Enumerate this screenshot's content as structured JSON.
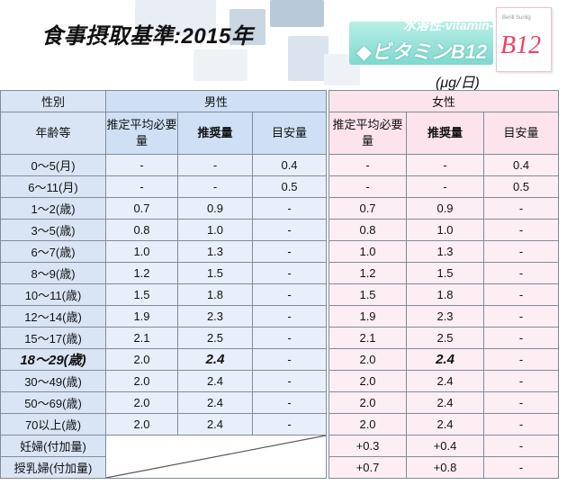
{
  "title": "食事摂取基準:2015年",
  "vitamin": {
    "small_label": "水溶性-vitamin-",
    "main_label": "◆ビタミンB12",
    "card_small": "Berill Sunlig",
    "card_big": "B12",
    "unit": "(μg/日)"
  },
  "table": {
    "header": {
      "sex_label": "性別",
      "male": "男性",
      "female": "女性",
      "age_label": "年齢等",
      "col_ear": "推定平均必要量",
      "col_rda": "推奨量",
      "col_ai": "目安量"
    },
    "rows": [
      {
        "age": "0～5(月)",
        "m_ear": "-",
        "m_rda": "-",
        "m_ai": "0.4",
        "f_ear": "-",
        "f_rda": "-",
        "f_ai": "0.4"
      },
      {
        "age": "6～11(月)",
        "m_ear": "-",
        "m_rda": "-",
        "m_ai": "0.5",
        "f_ear": "-",
        "f_rda": "-",
        "f_ai": "0.5"
      },
      {
        "age": "1～2(歳)",
        "m_ear": "0.7",
        "m_rda": "0.9",
        "m_ai": "-",
        "f_ear": "0.7",
        "f_rda": "0.9",
        "f_ai": "-"
      },
      {
        "age": "3～5(歳)",
        "m_ear": "0.8",
        "m_rda": "1.0",
        "m_ai": "-",
        "f_ear": "0.8",
        "f_rda": "1.0",
        "f_ai": "-"
      },
      {
        "age": "6～7(歳)",
        "m_ear": "1.0",
        "m_rda": "1.3",
        "m_ai": "-",
        "f_ear": "1.0",
        "f_rda": "1.3",
        "f_ai": "-"
      },
      {
        "age": "8～9(歳)",
        "m_ear": "1.2",
        "m_rda": "1.5",
        "m_ai": "-",
        "f_ear": "1.2",
        "f_rda": "1.5",
        "f_ai": "-"
      },
      {
        "age": "10～11(歳)",
        "m_ear": "1.5",
        "m_rda": "1.8",
        "m_ai": "-",
        "f_ear": "1.5",
        "f_rda": "1.8",
        "f_ai": "-"
      },
      {
        "age": "12～14(歳)",
        "m_ear": "1.9",
        "m_rda": "2.3",
        "m_ai": "-",
        "f_ear": "1.9",
        "f_rda": "2.3",
        "f_ai": "-"
      },
      {
        "age": "15～17(歳)",
        "m_ear": "2.1",
        "m_rda": "2.5",
        "m_ai": "-",
        "f_ear": "2.1",
        "f_rda": "2.5",
        "f_ai": "-"
      },
      {
        "age": "18～29(歳)",
        "m_ear": "2.0",
        "m_rda": "2.4",
        "m_ai": "-",
        "f_ear": "2.0",
        "f_rda": "2.4",
        "f_ai": "-",
        "highlight": true
      },
      {
        "age": "30～49(歳)",
        "m_ear": "2.0",
        "m_rda": "2.4",
        "m_ai": "-",
        "f_ear": "2.0",
        "f_rda": "2.4",
        "f_ai": "-"
      },
      {
        "age": "50～69(歳)",
        "m_ear": "2.0",
        "m_rda": "2.4",
        "m_ai": "-",
        "f_ear": "2.0",
        "f_rda": "2.4",
        "f_ai": "-"
      },
      {
        "age": "70以上(歳)",
        "m_ear": "2.0",
        "m_rda": "2.4",
        "m_ai": "-",
        "f_ear": "2.0",
        "f_rda": "2.4",
        "f_ai": "-"
      }
    ],
    "extra_rows": [
      {
        "age": "妊婦(付加量)",
        "f_ear": "+0.3",
        "f_rda": "+0.4",
        "f_ai": "-"
      },
      {
        "age": "授乳婦(付加量)",
        "f_ear": "+0.7",
        "f_rda": "+0.8",
        "f_ai": "-"
      }
    ]
  }
}
